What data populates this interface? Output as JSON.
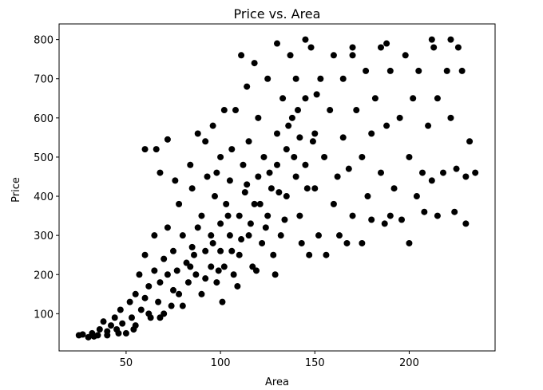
{
  "chart_data": {
    "type": "scatter",
    "title": "Price vs. Area",
    "x_label": "Area",
    "y_label": "Price",
    "color": "#000000",
    "x": [
      25,
      27,
      32,
      33,
      35,
      36,
      38,
      40,
      42,
      44,
      45,
      47,
      48,
      50,
      52,
      53,
      55,
      55,
      57,
      58,
      60,
      60,
      62,
      63,
      65,
      65,
      67,
      68,
      70,
      70,
      72,
      72,
      75,
      75,
      77,
      78,
      80,
      80,
      82,
      83,
      85,
      85,
      87,
      88,
      88,
      90,
      90,
      92,
      93,
      95,
      95,
      97,
      98,
      100,
      100,
      100,
      102,
      103,
      105,
      105,
      107,
      108,
      110,
      110,
      112,
      113,
      115,
      115,
      117,
      118,
      120,
      120,
      122,
      123,
      125,
      125,
      127,
      128,
      130,
      130,
      132,
      133,
      135,
      135,
      137,
      138,
      140,
      140,
      142,
      142,
      145,
      145,
      147,
      148,
      150,
      150,
      152,
      153,
      155,
      156,
      158,
      160,
      160,
      162,
      163,
      165,
      165,
      167,
      168,
      170,
      170,
      172,
      175,
      175,
      177,
      178,
      180,
      180,
      182,
      185,
      185,
      187,
      188,
      190,
      190,
      192,
      195,
      196,
      198,
      200,
      200,
      202,
      204,
      205,
      207,
      208,
      210,
      212,
      213,
      215,
      215,
      218,
      220,
      222,
      224,
      225,
      226,
      228,
      230,
      230,
      232,
      235,
      222,
      212,
      188,
      170,
      145,
      130,
      30,
      40,
      46,
      54,
      62,
      68,
      74,
      78,
      84,
      86,
      92,
      96,
      99,
      104,
      106,
      109,
      111,
      114,
      116,
      119,
      121,
      124,
      126,
      129,
      131,
      134,
      136,
      139,
      141,
      143,
      146,
      149,
      151,
      101,
      111,
      60,
      66,
      72,
      68,
      76,
      84,
      92,
      98,
      106,
      114,
      118,
      102,
      96
    ],
    "values": [
      45,
      47,
      50,
      42,
      45,
      60,
      80,
      55,
      70,
      90,
      60,
      110,
      75,
      50,
      130,
      90,
      150,
      70,
      200,
      110,
      140,
      250,
      170,
      90,
      210,
      300,
      130,
      180,
      240,
      100,
      320,
      200,
      160,
      260,
      210,
      380,
      120,
      300,
      230,
      180,
      420,
      270,
      200,
      320,
      560,
      150,
      350,
      260,
      450,
      220,
      300,
      400,
      180,
      500,
      260,
      330,
      220,
      380,
      440,
      300,
      200,
      620,
      350,
      250,
      480,
      410,
      300,
      540,
      220,
      380,
      450,
      600,
      280,
      500,
      350,
      700,
      420,
      250,
      560,
      480,
      300,
      650,
      400,
      520,
      760,
      600,
      450,
      700,
      350,
      550,
      480,
      650,
      250,
      780,
      420,
      560,
      300,
      700,
      500,
      250,
      620,
      380,
      760,
      450,
      300,
      550,
      700,
      280,
      470,
      760,
      350,
      620,
      280,
      500,
      720,
      400,
      560,
      340,
      650,
      460,
      780,
      330,
      580,
      720,
      350,
      420,
      600,
      340,
      760,
      500,
      280,
      650,
      400,
      720,
      460,
      360,
      580,
      440,
      780,
      350,
      650,
      460,
      720,
      600,
      360,
      470,
      780,
      720,
      330,
      450,
      540,
      460,
      800,
      800,
      790,
      780,
      800,
      790,
      40,
      45,
      50,
      60,
      100,
      90,
      120,
      150,
      220,
      250,
      190,
      280,
      210,
      350,
      260,
      170,
      290,
      430,
      330,
      210,
      380,
      320,
      460,
      200,
      410,
      340,
      580,
      500,
      620,
      280,
      420,
      540,
      660,
      130,
      760,
      520,
      520,
      545,
      460,
      440,
      480,
      540,
      460,
      520,
      680,
      740,
      620,
      580
    ],
    "xlim": [
      14.5,
      245.5
    ],
    "ylim": [
      5,
      840
    ],
    "xticks": [
      50,
      100,
      150,
      200
    ],
    "yticks": [
      100,
      200,
      300,
      400,
      500,
      600,
      700,
      800
    ]
  }
}
